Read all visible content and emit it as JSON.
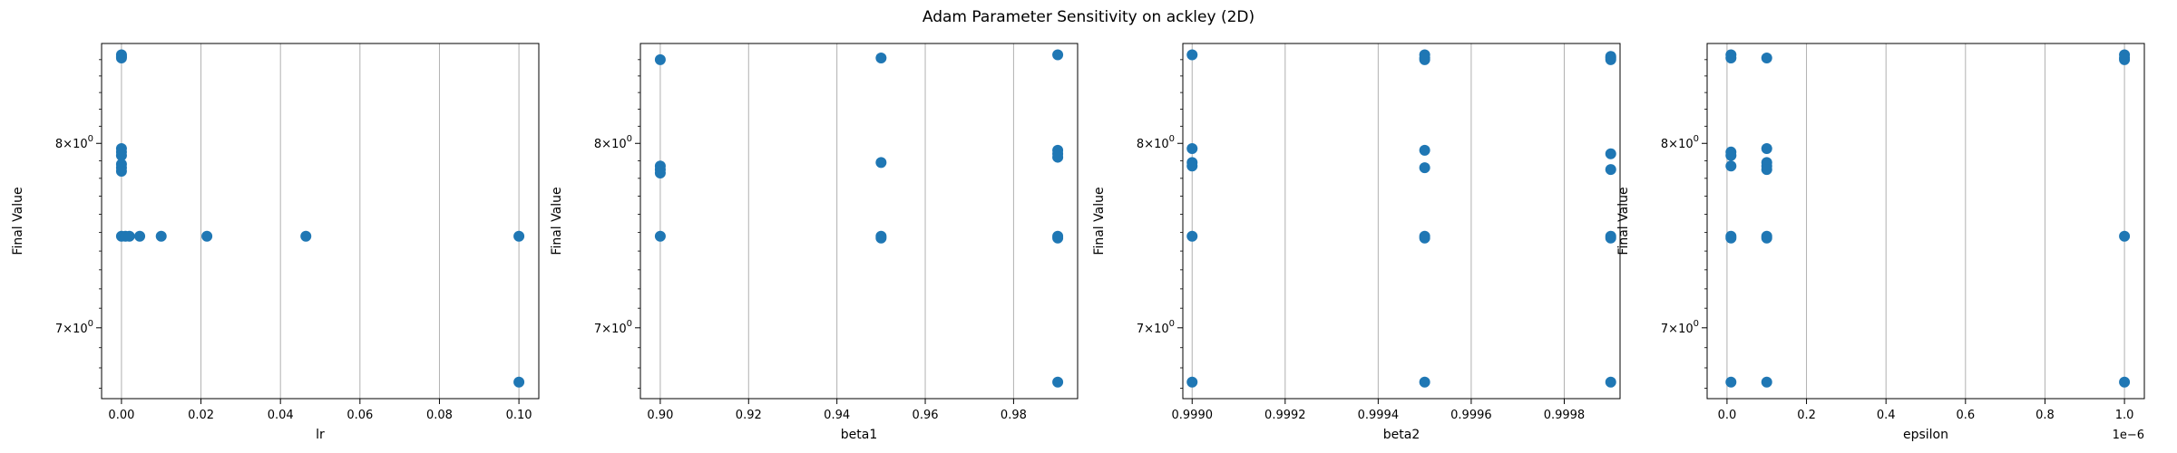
{
  "figure": {
    "title": "Adam Parameter Sensitivity on ackley (2D)"
  },
  "colors": {
    "marker": "#1f77b4",
    "grid": "#b0b0b0",
    "axes": "#000000"
  },
  "chart_data": [
    {
      "type": "scatter",
      "xlabel": "lr",
      "ylabel": "Final Value",
      "yscale": "log",
      "ylim": [
        6.65,
        8.6
      ],
      "xlim": [
        -0.005,
        0.105
      ],
      "xticks": [
        0.0,
        0.02,
        0.04,
        0.06,
        0.08,
        0.1
      ],
      "xtick_labels": [
        "0.00",
        "0.02",
        "0.04",
        "0.06",
        "0.08",
        "0.10"
      ],
      "offset_text": "",
      "grid_x": true,
      "points": [
        {
          "x": 0.0,
          "y": 8.52
        },
        {
          "x": 0.0,
          "y": 8.53
        },
        {
          "x": 0.0,
          "y": 8.51
        },
        {
          "x": 0.0,
          "y": 7.97
        },
        {
          "x": 0.0,
          "y": 7.95
        },
        {
          "x": 0.0,
          "y": 7.93
        },
        {
          "x": 0.0,
          "y": 7.88
        },
        {
          "x": 0.0,
          "y": 7.86
        },
        {
          "x": 0.0,
          "y": 7.84
        },
        {
          "x": 0.0,
          "y": 7.48
        },
        {
          "x": 0.001,
          "y": 7.48
        },
        {
          "x": 0.002,
          "y": 7.48
        },
        {
          "x": 0.0046,
          "y": 7.48
        },
        {
          "x": 0.01,
          "y": 7.48
        },
        {
          "x": 0.0215,
          "y": 7.48
        },
        {
          "x": 0.0464,
          "y": 7.48
        },
        {
          "x": 0.1,
          "y": 7.48
        },
        {
          "x": 0.1,
          "y": 6.73
        }
      ]
    },
    {
      "type": "scatter",
      "xlabel": "beta1",
      "ylabel": "Final Value",
      "yscale": "log",
      "ylim": [
        6.65,
        8.6
      ],
      "xlim": [
        0.8955,
        0.9945
      ],
      "xticks": [
        0.9,
        0.92,
        0.94,
        0.96,
        0.98
      ],
      "xtick_labels": [
        "0.90",
        "0.92",
        "0.94",
        "0.96",
        "0.98"
      ],
      "offset_text": "",
      "grid_x": true,
      "points": [
        {
          "x": 0.9,
          "y": 8.5
        },
        {
          "x": 0.9,
          "y": 7.87
        },
        {
          "x": 0.9,
          "y": 7.85
        },
        {
          "x": 0.9,
          "y": 7.83
        },
        {
          "x": 0.9,
          "y": 7.48
        },
        {
          "x": 0.95,
          "y": 8.51
        },
        {
          "x": 0.95,
          "y": 7.89
        },
        {
          "x": 0.95,
          "y": 7.48
        },
        {
          "x": 0.95,
          "y": 7.47
        },
        {
          "x": 0.99,
          "y": 8.53
        },
        {
          "x": 0.99,
          "y": 7.96
        },
        {
          "x": 0.99,
          "y": 7.94
        },
        {
          "x": 0.99,
          "y": 7.92
        },
        {
          "x": 0.99,
          "y": 7.48
        },
        {
          "x": 0.99,
          "y": 7.47
        },
        {
          "x": 0.99,
          "y": 6.73
        }
      ]
    },
    {
      "type": "scatter",
      "xlabel": "beta2",
      "ylabel": "Final Value",
      "yscale": "log",
      "ylim": [
        6.65,
        8.6
      ],
      "xlim": [
        0.99898,
        0.99992
      ],
      "xticks": [
        0.999,
        0.9992,
        0.9994,
        0.9996,
        0.9998
      ],
      "xtick_labels": [
        "0.9990",
        "0.9992",
        "0.9994",
        "0.9996",
        "0.9998"
      ],
      "offset_text": "",
      "grid_x": true,
      "points": [
        {
          "x": 0.999,
          "y": 8.53
        },
        {
          "x": 0.999,
          "y": 7.97
        },
        {
          "x": 0.999,
          "y": 7.89
        },
        {
          "x": 0.999,
          "y": 7.87
        },
        {
          "x": 0.999,
          "y": 7.48
        },
        {
          "x": 0.999,
          "y": 6.73
        },
        {
          "x": 0.9995,
          "y": 8.53
        },
        {
          "x": 0.9995,
          "y": 8.51
        },
        {
          "x": 0.9995,
          "y": 8.5
        },
        {
          "x": 0.9995,
          "y": 7.96
        },
        {
          "x": 0.9995,
          "y": 7.86
        },
        {
          "x": 0.9995,
          "y": 7.48
        },
        {
          "x": 0.9995,
          "y": 7.47
        },
        {
          "x": 0.9995,
          "y": 6.73
        },
        {
          "x": 0.9999,
          "y": 8.52
        },
        {
          "x": 0.9999,
          "y": 8.51
        },
        {
          "x": 0.9999,
          "y": 8.5
        },
        {
          "x": 0.9999,
          "y": 7.94
        },
        {
          "x": 0.9999,
          "y": 7.85
        },
        {
          "x": 0.9999,
          "y": 7.48
        },
        {
          "x": 0.9999,
          "y": 7.47
        },
        {
          "x": 0.9999,
          "y": 6.73
        }
      ]
    },
    {
      "type": "scatter",
      "xlabel": "epsilon",
      "ylabel": "Final Value",
      "yscale": "log",
      "ylim": [
        6.65,
        8.6
      ],
      "xlim": [
        -0.05,
        1.05
      ],
      "xticks": [
        0.0,
        0.2,
        0.4,
        0.6,
        0.8,
        1.0
      ],
      "xtick_labels": [
        "0.0",
        "0.2",
        "0.4",
        "0.6",
        "0.8",
        "1.0"
      ],
      "offset_text": "1e−6",
      "grid_x": true,
      "points": [
        {
          "x": 0.01,
          "y": 8.53
        },
        {
          "x": 0.01,
          "y": 8.51
        },
        {
          "x": 0.01,
          "y": 7.95
        },
        {
          "x": 0.01,
          "y": 7.93
        },
        {
          "x": 0.01,
          "y": 7.87
        },
        {
          "x": 0.01,
          "y": 7.48
        },
        {
          "x": 0.01,
          "y": 7.47
        },
        {
          "x": 0.01,
          "y": 6.73
        },
        {
          "x": 0.1,
          "y": 8.51
        },
        {
          "x": 0.1,
          "y": 7.97
        },
        {
          "x": 0.1,
          "y": 7.89
        },
        {
          "x": 0.1,
          "y": 7.87
        },
        {
          "x": 0.1,
          "y": 7.85
        },
        {
          "x": 0.1,
          "y": 7.48
        },
        {
          "x": 0.1,
          "y": 7.47
        },
        {
          "x": 0.1,
          "y": 6.73
        },
        {
          "x": 1.0,
          "y": 8.53
        },
        {
          "x": 1.0,
          "y": 8.51
        },
        {
          "x": 1.0,
          "y": 8.5
        },
        {
          "x": 1.0,
          "y": 7.48
        },
        {
          "x": 1.0,
          "y": 6.73
        }
      ]
    }
  ],
  "y_axis": {
    "major_ticks": [
      {
        "value": 8,
        "mantissa": "8",
        "base": "10",
        "exp": "0"
      },
      {
        "value": 7,
        "mantissa": "7",
        "base": "10",
        "exp": "0"
      }
    ]
  }
}
